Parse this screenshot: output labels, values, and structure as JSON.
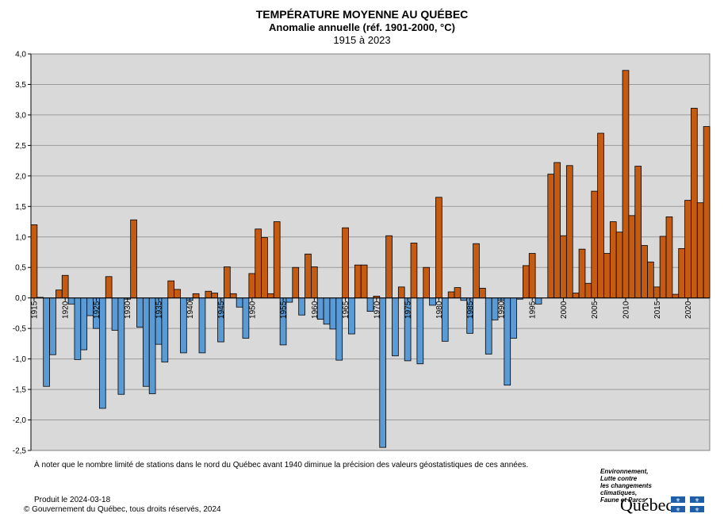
{
  "header": {
    "title": "TEMPÉRATURE MOYENNE AU QUÉBEC",
    "subtitle": "Anomalie annuelle (réf. 1901-2000, °C)",
    "period": "1915 à 2023"
  },
  "chart_data": {
    "type": "bar",
    "title": "TEMPÉRATURE MOYENNE AU QUÉBEC",
    "subtitle": "Anomalie annuelle (réf. 1901-2000, °C)",
    "xlabel": "",
    "ylabel": "",
    "ylim": [
      -2.5,
      4.0
    ],
    "yticks": [
      -2.5,
      -2.0,
      -1.5,
      -1.0,
      -0.5,
      0.0,
      0.5,
      1.0,
      1.5,
      2.0,
      2.5,
      3.0,
      3.5,
      4.0
    ],
    "ytick_labels": [
      "-2,5",
      "-2,0",
      "-1,5",
      "-1,0",
      "-0,5",
      "0,0",
      "0,5",
      "1,0",
      "1,5",
      "2,0",
      "2,5",
      "3,0",
      "3,5",
      "4,0"
    ],
    "xtick_labels": [
      "1915",
      "1920",
      "1925",
      "1930",
      "1935",
      "1940",
      "1945",
      "1950",
      "1955",
      "1960",
      "1965",
      "1970",
      "1975",
      "1980",
      "1985",
      "1990",
      "1995",
      "2000",
      "2005",
      "2010",
      "2015",
      "2020"
    ],
    "grid": true,
    "colors": {
      "positive": "#c55a11",
      "negative": "#5b9bd5",
      "plot_bg": "#d9d9d9"
    },
    "x": [
      1915,
      1916,
      1917,
      1918,
      1919,
      1920,
      1921,
      1922,
      1923,
      1924,
      1925,
      1926,
      1927,
      1928,
      1929,
      1930,
      1931,
      1932,
      1933,
      1934,
      1935,
      1936,
      1937,
      1938,
      1939,
      1940,
      1941,
      1942,
      1943,
      1944,
      1945,
      1946,
      1947,
      1948,
      1949,
      1950,
      1951,
      1952,
      1953,
      1954,
      1955,
      1956,
      1957,
      1958,
      1959,
      1960,
      1961,
      1962,
      1963,
      1964,
      1965,
      1966,
      1967,
      1968,
      1969,
      1970,
      1971,
      1972,
      1973,
      1974,
      1975,
      1976,
      1977,
      1978,
      1979,
      1980,
      1981,
      1982,
      1983,
      1984,
      1985,
      1986,
      1987,
      1988,
      1989,
      1990,
      1991,
      1992,
      1993,
      1994,
      1995,
      1996,
      1997,
      1998,
      1999,
      2000,
      2001,
      2002,
      2003,
      2004,
      2005,
      2006,
      2007,
      2008,
      2009,
      2010,
      2011,
      2012,
      2013,
      2014,
      2015,
      2016,
      2017,
      2018,
      2019,
      2020,
      2021,
      2022,
      2023
    ],
    "values": [
      1.2,
      0.01,
      -1.45,
      -0.93,
      0.13,
      0.37,
      -0.1,
      -1.01,
      -0.85,
      -0.29,
      -0.5,
      -1.81,
      0.35,
      -0.53,
      -1.58,
      -0.02,
      1.28,
      -0.48,
      -1.45,
      -1.57,
      -0.76,
      -1.05,
      0.28,
      0.14,
      -0.9,
      -0.04,
      0.07,
      -0.9,
      0.11,
      0.08,
      -0.72,
      0.51,
      0.07,
      -0.15,
      -0.66,
      0.4,
      1.13,
      0.99,
      0.07,
      1.25,
      -0.77,
      -0.07,
      0.5,
      -0.28,
      0.72,
      0.51,
      -0.35,
      -0.43,
      -0.51,
      -1.02,
      1.15,
      -0.59,
      0.54,
      0.54,
      -0.22,
      0.03,
      -2.45,
      1.02,
      -0.95,
      0.18,
      -1.03,
      0.9,
      -1.08,
      0.5,
      -0.12,
      1.65,
      -0.71,
      0.1,
      0.17,
      -0.04,
      -0.58,
      0.89,
      0.16,
      -0.92,
      -0.36,
      -0.04,
      -1.43,
      -0.66,
      -0.02,
      0.53,
      0.73,
      -0.1,
      0,
      2.03,
      2.22,
      1.02,
      2.17,
      0.08,
      0.8,
      0.24,
      1.75,
      2.7,
      0.73,
      1.25,
      1.08,
      3.73,
      1.35,
      2.16,
      0.86,
      0.59,
      0.18,
      1.01,
      1.33,
      0.06,
      0.81,
      1.6,
      3.11,
      1.56,
      2.81
    ]
  },
  "footer": {
    "note": "À noter que le nombre limité de stations dans le nord du Québec avant 1940 diminue la précision des valeurs géostatistiques de ces années.",
    "produced": "Produit le 2024-03-18",
    "copyright": "© Gouvernement du Québec, tous droits réservés, 2024"
  },
  "logo": {
    "ministry_lines": [
      "Environnement,",
      "Lutte contre",
      "les changements",
      "climatiques,",
      "Faune et Parcs"
    ],
    "wordmark": "Québec",
    "flag_icon": "fleurdelise-flag-icon"
  }
}
